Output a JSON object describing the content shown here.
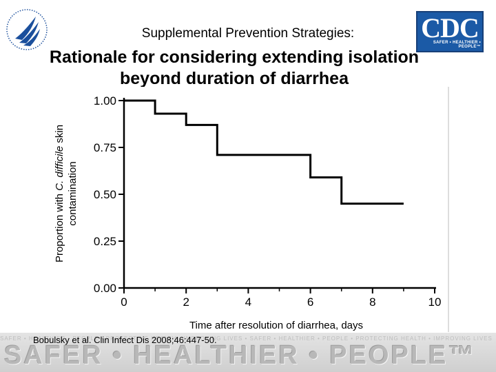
{
  "header": {
    "subtitle": "Supplemental Prevention Strategies:",
    "title_line1": "Rationale for considering extending isolation",
    "title_line2": "beyond duration of diarrhea",
    "cdc_logo_text": "CDC",
    "cdc_tagline": "SAFER • HEALTHIER • PEOPLE™"
  },
  "chart_data": {
    "type": "line",
    "step": true,
    "x": [
      0,
      1,
      1,
      2,
      2,
      3,
      3,
      6,
      6,
      7,
      7,
      9
    ],
    "y": [
      1.0,
      1.0,
      0.93,
      0.93,
      0.87,
      0.87,
      0.71,
      0.71,
      0.59,
      0.59,
      0.45,
      0.45
    ],
    "xlabel": "Time after resolution of diarrhea, days",
    "ylabel_parts": [
      "Proportion with ",
      "C. difficile",
      " skin"
    ],
    "ylabel_line2": "contamination",
    "xlim": [
      0,
      10
    ],
    "ylim": [
      0,
      1
    ],
    "x_ticks": [
      "0",
      "2",
      "4",
      "6",
      "8",
      "10"
    ],
    "y_ticks": [
      "0.00",
      "0.25",
      "0.50",
      "0.75",
      "1.00"
    ],
    "line_color": "#000000",
    "grid": false
  },
  "citation": "Bobulsky et al. Clin Infect Dis 2008;46:447-50.",
  "footer": {
    "slogan": "SAFER • HEALTHIER • PEOPLE™",
    "faint_text": "SAFER • HEALTHIER • PEOPLE • PROTECTING HEALTH • IMPROVING LIVES • SAFER • HEALTHIER • PEOPLE • PROTECTING HEALTH • IMPROVING LIVES"
  }
}
